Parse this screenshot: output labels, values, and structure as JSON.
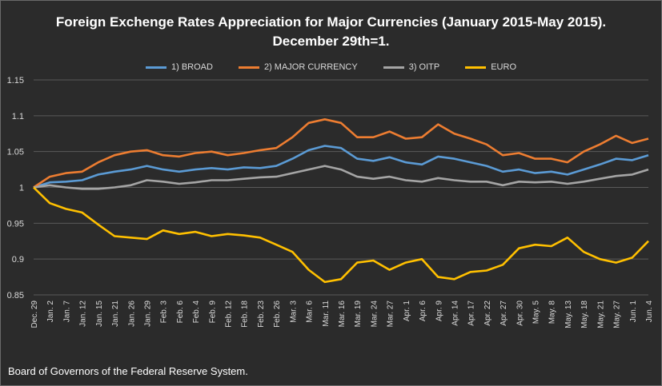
{
  "chart_data": {
    "type": "line",
    "title_line1": "Foreign Exchenge Rates Appreciation for Major Currencies (January 2015-May 2015).",
    "title_line2": "December 29th=1.",
    "xlabel": "",
    "ylabel": "",
    "ylim": [
      0.85,
      1.15
    ],
    "yticks": [
      0.85,
      0.9,
      0.95,
      1,
      1.05,
      1.1,
      1.15
    ],
    "ytick_labels": [
      "0.85",
      "0.9",
      "0.95",
      "1",
      "1.05",
      "1.1",
      "1.15"
    ],
    "grid": true,
    "legend_position": "top",
    "x_tick_labels": [
      "Dec. 29",
      "Jan. 2",
      "Jan. 7",
      "Jan. 12",
      "Jan. 15",
      "Jan. 21",
      "Jan. 26",
      "Jan. 29",
      "Feb. 3",
      "Feb. 6",
      "Feb. 4",
      "Feb. 9",
      "Feb. 12",
      "Feb. 18",
      "Feb. 23",
      "Feb. 26",
      "Mar. 3",
      "Mar. 6",
      "Mar. 11",
      "Mar. 16",
      "Mar. 19",
      "Mar. 24",
      "Mar. 27",
      "Apr. 1",
      "Apr. 6",
      "Apr. 9",
      "Apr. 14",
      "Apr. 17",
      "Apr. 22",
      "Apr. 27",
      "Apr. 30",
      "May. 5",
      "May. 8",
      "May. 13",
      "May. 18",
      "May. 21",
      "May. 27",
      "Jun. 1",
      "Jun. 4"
    ],
    "series": [
      {
        "name": "1) BROAD",
        "color": "#5b9bd5",
        "values": [
          1.0,
          1.007,
          1.008,
          1.01,
          1.018,
          1.022,
          1.025,
          1.03,
          1.025,
          1.022,
          1.025,
          1.027,
          1.025,
          1.028,
          1.027,
          1.03,
          1.04,
          1.052,
          1.058,
          1.055,
          1.04,
          1.037,
          1.042,
          1.035,
          1.032,
          1.043,
          1.04,
          1.035,
          1.03,
          1.022,
          1.025,
          1.02,
          1.022,
          1.018,
          1.025,
          1.032,
          1.04,
          1.038,
          1.045
        ]
      },
      {
        "name": "2) MAJOR CURRENCY",
        "color": "#ed7d31",
        "values": [
          1.0,
          1.015,
          1.02,
          1.022,
          1.035,
          1.045,
          1.05,
          1.052,
          1.045,
          1.043,
          1.048,
          1.05,
          1.045,
          1.048,
          1.052,
          1.055,
          1.07,
          1.09,
          1.095,
          1.09,
          1.07,
          1.07,
          1.078,
          1.068,
          1.07,
          1.088,
          1.075,
          1.068,
          1.06,
          1.045,
          1.048,
          1.04,
          1.04,
          1.035,
          1.05,
          1.06,
          1.072,
          1.062,
          1.068
        ]
      },
      {
        "name": "3) OITP",
        "color": "#a5a5a5",
        "values": [
          1.0,
          1.003,
          1.0,
          0.998,
          0.998,
          1.0,
          1.003,
          1.01,
          1.008,
          1.005,
          1.007,
          1.01,
          1.01,
          1.012,
          1.014,
          1.015,
          1.02,
          1.025,
          1.03,
          1.025,
          1.015,
          1.012,
          1.015,
          1.01,
          1.008,
          1.013,
          1.01,
          1.008,
          1.008,
          1.003,
          1.008,
          1.007,
          1.008,
          1.005,
          1.008,
          1.012,
          1.016,
          1.018,
          1.025
        ]
      },
      {
        "name": "EURO",
        "color": "#ffc000",
        "values": [
          1.0,
          0.978,
          0.97,
          0.965,
          0.948,
          0.932,
          0.93,
          0.928,
          0.94,
          0.935,
          0.938,
          0.932,
          0.935,
          0.933,
          0.93,
          0.92,
          0.91,
          0.885,
          0.868,
          0.872,
          0.895,
          0.898,
          0.885,
          0.895,
          0.9,
          0.875,
          0.872,
          0.882,
          0.884,
          0.892,
          0.915,
          0.92,
          0.918,
          0.93,
          0.91,
          0.9,
          0.895,
          0.902,
          0.925
        ]
      }
    ]
  },
  "footer": {
    "source": "Board of Governors of the Federal Reserve System."
  }
}
